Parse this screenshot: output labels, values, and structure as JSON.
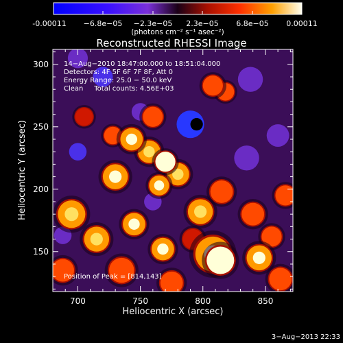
{
  "colorbar": {
    "tick_labels": [
      "-0.00011",
      "−6.8e−05",
      "−2.3e−05",
      "2.3e−05",
      "6.8e−05",
      "0.00011"
    ],
    "unit_label": "(photons cm⁻² s⁻¹ asec⁻²)"
  },
  "chart_data": {
    "type": "heatmap",
    "title": "Reconstructed RHESSI Image",
    "xlabel": "Heliocentric X (arcsec)",
    "ylabel": "Heliocentric Y (arcsec)",
    "xlim": [
      680,
      872
    ],
    "ylim": [
      118,
      312
    ],
    "x_ticks": [
      700,
      750,
      800,
      850
    ],
    "y_ticks": [
      150,
      200,
      250,
      300
    ],
    "value_range": [
      -0.00011,
      0.00011
    ],
    "annotations": [
      "14−Aug−2010 18:47:00.000 to 18:51:04.000",
      "Detectors: 4F 5F 6F 7F 8F, Att 0",
      "Energy Range: 25.0 − 50.0 keV",
      "Clean     Total counts: 4.56E+03"
    ],
    "peak_label": "Position of Peak = [814,143]",
    "blobs": [
      {
        "x": 814,
        "y": 143,
        "v": 1.0,
        "r": 11
      },
      {
        "x": 808,
        "y": 148,
        "v": 0.75,
        "r": 14
      },
      {
        "x": 770,
        "y": 222,
        "v": 0.95,
        "r": 8
      },
      {
        "x": 757,
        "y": 230,
        "v": 0.7,
        "r": 9
      },
      {
        "x": 780,
        "y": 212,
        "v": 0.7,
        "r": 9
      },
      {
        "x": 765,
        "y": 203,
        "v": 0.75,
        "r": 8
      },
      {
        "x": 730,
        "y": 210,
        "v": 0.75,
        "r": 10
      },
      {
        "x": 743,
        "y": 240,
        "v": 0.75,
        "r": 9
      },
      {
        "x": 760,
        "y": 258,
        "v": 0.65,
        "r": 8
      },
      {
        "x": 728,
        "y": 243,
        "v": 0.55,
        "r": 7
      },
      {
        "x": 705,
        "y": 258,
        "v": 0.45,
        "r": 7
      },
      {
        "x": 808,
        "y": 283,
        "v": 0.65,
        "r": 8
      },
      {
        "x": 818,
        "y": 278,
        "v": 0.55,
        "r": 7
      },
      {
        "x": 798,
        "y": 182,
        "v": 0.7,
        "r": 10
      },
      {
        "x": 815,
        "y": 198,
        "v": 0.55,
        "r": 9
      },
      {
        "x": 840,
        "y": 180,
        "v": 0.65,
        "r": 9
      },
      {
        "x": 866,
        "y": 195,
        "v": 0.55,
        "r": 8
      },
      {
        "x": 695,
        "y": 180,
        "v": 0.7,
        "r": 11
      },
      {
        "x": 715,
        "y": 160,
        "v": 0.7,
        "r": 10
      },
      {
        "x": 745,
        "y": 172,
        "v": 0.75,
        "r": 9
      },
      {
        "x": 768,
        "y": 152,
        "v": 0.8,
        "r": 9
      },
      {
        "x": 688,
        "y": 135,
        "v": 0.6,
        "r": 9
      },
      {
        "x": 735,
        "y": 135,
        "v": 0.6,
        "r": 10
      },
      {
        "x": 775,
        "y": 125,
        "v": 0.55,
        "r": 9
      },
      {
        "x": 845,
        "y": 145,
        "v": 0.75,
        "r": 10
      },
      {
        "x": 862,
        "y": 128,
        "v": 0.6,
        "r": 9
      },
      {
        "x": 855,
        "y": 162,
        "v": 0.55,
        "r": 8
      },
      {
        "x": 792,
        "y": 160,
        "v": 0.5,
        "r": 8
      },
      {
        "x": 795,
        "y": 252,
        "v": -0.95,
        "r": 5
      },
      {
        "x": 790,
        "y": 252,
        "v": -0.6,
        "r": 11
      },
      {
        "x": 720,
        "y": 290,
        "v": -0.45,
        "r": 8
      },
      {
        "x": 700,
        "y": 230,
        "v": -0.4,
        "r": 7
      },
      {
        "x": 750,
        "y": 262,
        "v": -0.35,
        "r": 7
      },
      {
        "x": 860,
        "y": 243,
        "v": -0.35,
        "r": 9
      },
      {
        "x": 700,
        "y": 305,
        "v": -0.3,
        "r": 8
      },
      {
        "x": 835,
        "y": 225,
        "v": -0.35,
        "r": 10
      },
      {
        "x": 838,
        "y": 288,
        "v": -0.3,
        "r": 10
      },
      {
        "x": 688,
        "y": 163,
        "v": -0.3,
        "r": 7
      },
      {
        "x": 760,
        "y": 190,
        "v": -0.3,
        "r": 7
      }
    ]
  },
  "footer": {
    "timestamp": "3−Aug−2013 22:33"
  }
}
